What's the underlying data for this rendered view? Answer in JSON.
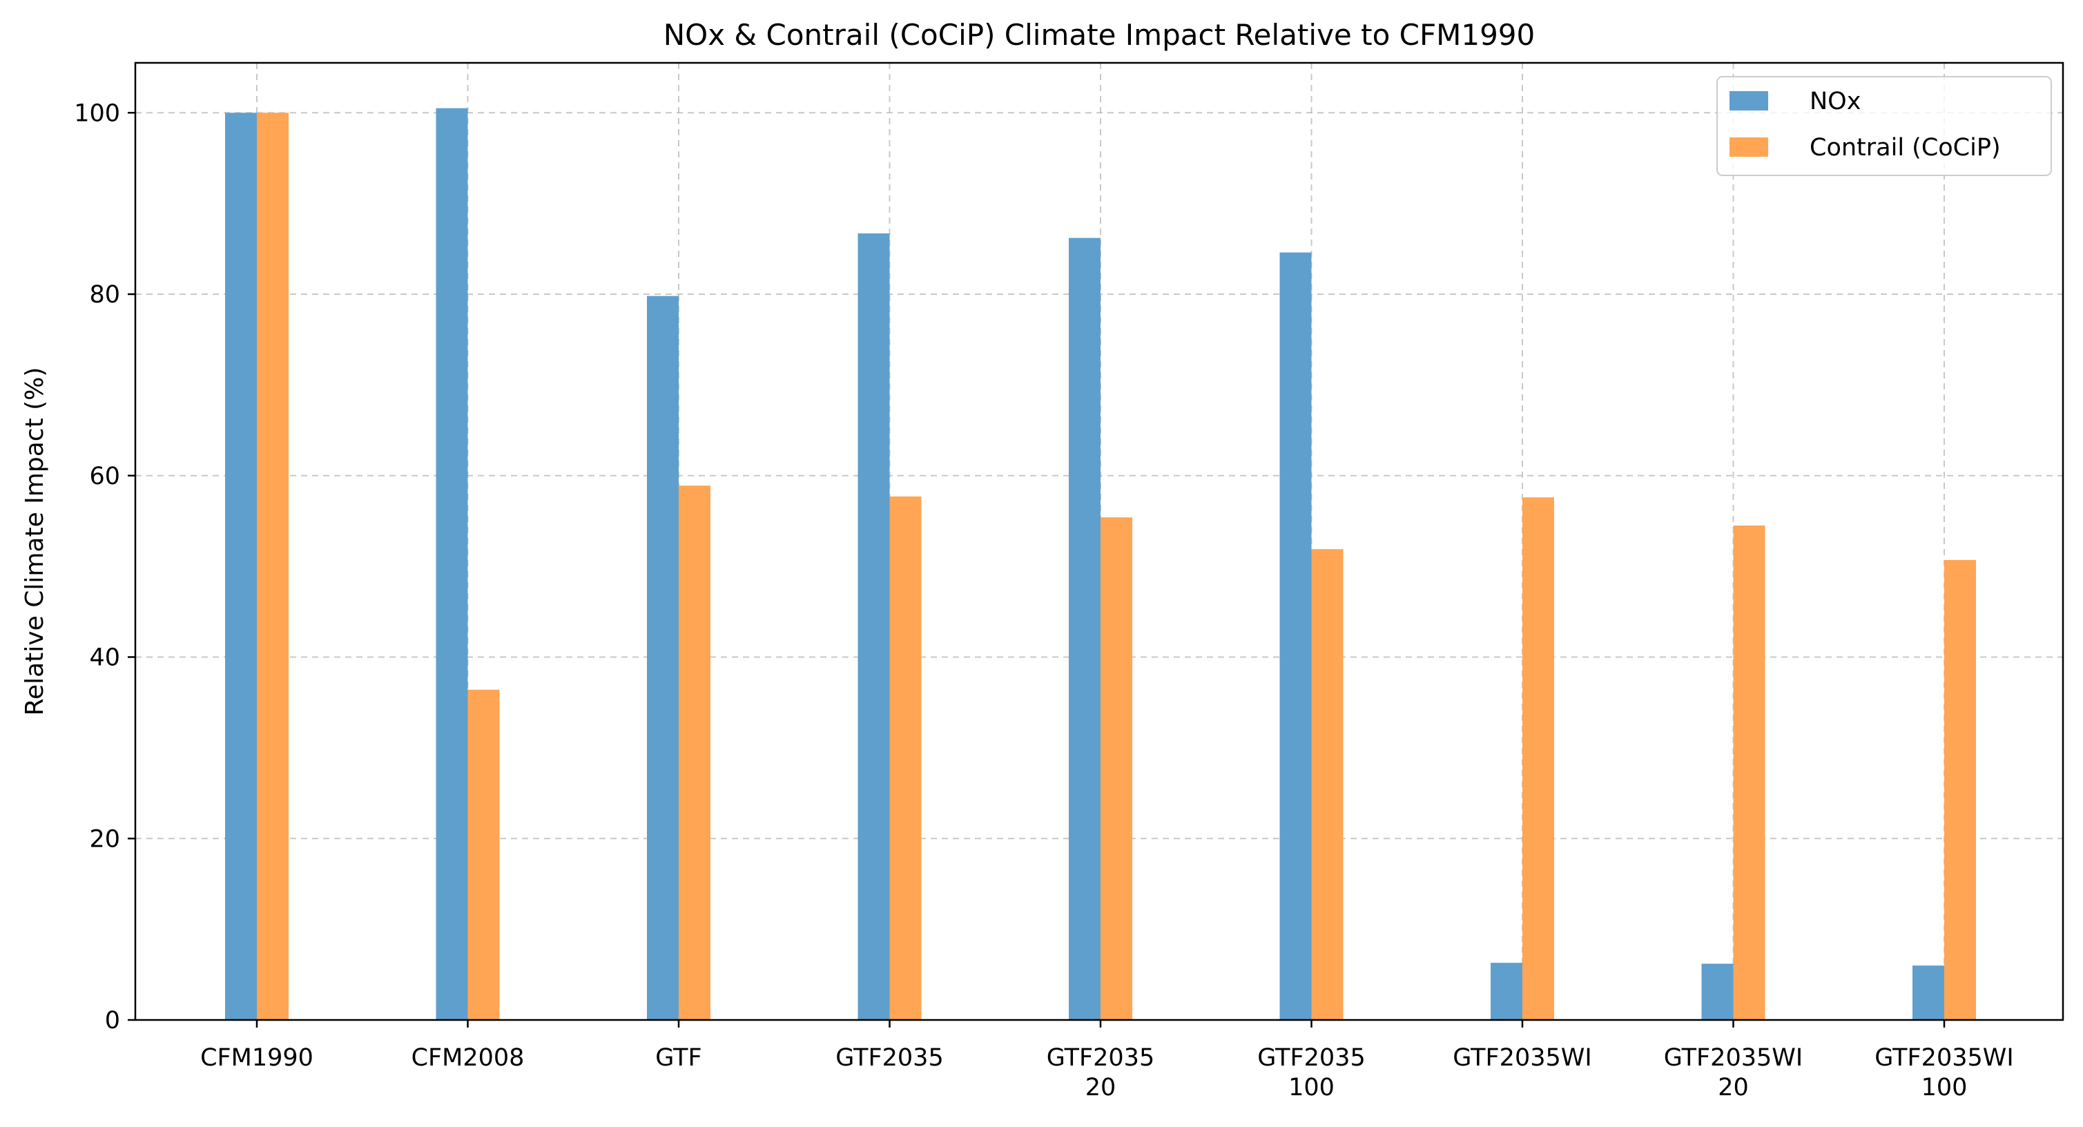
{
  "chart_data": {
    "type": "bar",
    "title": "NOx & Contrail (CoCiP) Climate Impact Relative to CFM1990",
    "xlabel": "",
    "ylabel": "Relative Climate Impact (%)",
    "ylim": [
      0,
      105.5
    ],
    "yticks": [
      0,
      20,
      40,
      60,
      80,
      100
    ],
    "grid": true,
    "legend_position": "top-right",
    "categories": [
      [
        "CFM1990"
      ],
      [
        "CFM2008"
      ],
      [
        "GTF"
      ],
      [
        "GTF2035"
      ],
      [
        "GTF2035",
        "20"
      ],
      [
        "GTF2035",
        "100"
      ],
      [
        "GTF2035WI"
      ],
      [
        "GTF2035WI",
        "20"
      ],
      [
        "GTF2035WI",
        "100"
      ]
    ],
    "series": [
      {
        "name": "NOx",
        "color": "#5f9fcd",
        "values": [
          100.0,
          100.5,
          79.8,
          86.7,
          86.2,
          84.6,
          6.3,
          6.2,
          6.0
        ]
      },
      {
        "name": "Contrail (CoCiP)",
        "color": "#ffa554",
        "values": [
          100.0,
          36.4,
          58.9,
          57.7,
          55.4,
          51.9,
          57.6,
          54.5,
          50.7
        ]
      }
    ]
  }
}
